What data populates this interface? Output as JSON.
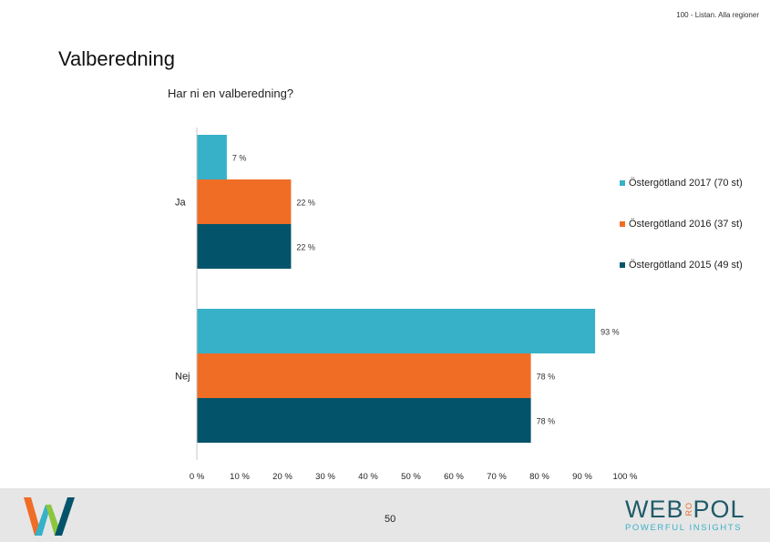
{
  "header": {
    "note": "100 - Listan. Alla regioner",
    "title": "Valberedning"
  },
  "chart_data": {
    "type": "bar",
    "orientation": "horizontal",
    "title": "Har ni en valberedning?",
    "categories": [
      "Ja",
      "Nej"
    ],
    "series": [
      {
        "name": "Östergötland 2017 (70 st)",
        "color": "#36b1c8",
        "values": [
          7,
          93
        ],
        "labels": [
          "7 %",
          "93 %"
        ]
      },
      {
        "name": "Östergötland 2016 (37 st)",
        "color": "#f06d26",
        "values": [
          22,
          78
        ],
        "labels": [
          "22 %",
          "78 %"
        ]
      },
      {
        "name": "Östergötland 2015 (49 st)",
        "color": "#03546a",
        "values": [
          22,
          78
        ],
        "labels": [
          "22 %",
          "78 %"
        ]
      }
    ],
    "x_ticks": [
      "0 %",
      "10 %",
      "20 %",
      "30 %",
      "40 %",
      "50 %",
      "60 %",
      "70 %",
      "80 %",
      "90 %",
      "100 %"
    ],
    "xlim": [
      0,
      100
    ],
    "grid": false,
    "legend_position": "right"
  },
  "footer": {
    "page_number": "50",
    "brand_left": "WEB",
    "brand_ro": "RO",
    "brand_right": "POL",
    "tagline": "POWERFUL INSIGHTS"
  }
}
